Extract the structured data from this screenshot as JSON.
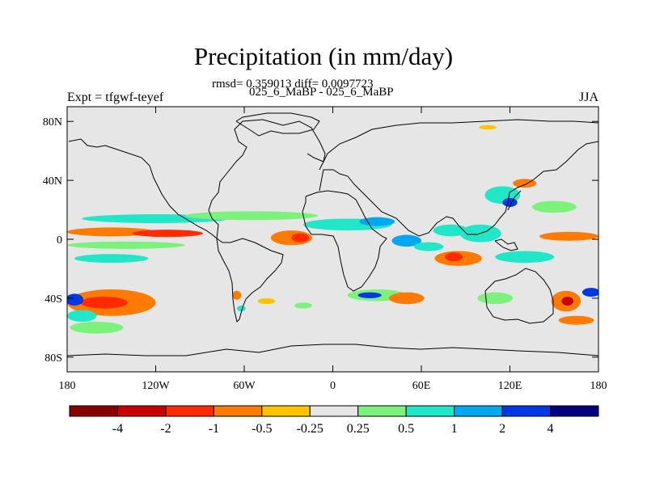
{
  "chart_data": {
    "type": "contour-map",
    "title": "Precipitation (in mm/day)",
    "stats_text": "rmsd= 0.359013 diff= 0.0097723",
    "rmsd": 0.359013,
    "diff": 0.0097723,
    "comparison_label": "025_6_MaBP - 025_6_MaBP",
    "left_label": "Expt = tfgwf-teyef",
    "right_label": "JJA",
    "lon_range": [
      -180,
      180
    ],
    "lat_range": [
      -90,
      90
    ],
    "x_ticks": [
      {
        "value": -180,
        "label": "180"
      },
      {
        "value": -120,
        "label": "120W"
      },
      {
        "value": -60,
        "label": "60W"
      },
      {
        "value": 0,
        "label": "0"
      },
      {
        "value": 60,
        "label": "60E"
      },
      {
        "value": 120,
        "label": "120E"
      },
      {
        "value": 180,
        "label": "180"
      }
    ],
    "y_ticks": [
      {
        "value": 80,
        "label": "80N"
      },
      {
        "value": 40,
        "label": "40N"
      },
      {
        "value": 0,
        "label": "0"
      },
      {
        "value": -40,
        "label": "40S"
      },
      {
        "value": -80,
        "label": "80S"
      }
    ],
    "colorbar": {
      "colors": [
        "#8a0000",
        "#c80000",
        "#ff2a00",
        "#ff7a00",
        "#ffc400",
        "#e6e6e6",
        "#7cf27c",
        "#22e6c8",
        "#00a8f0",
        "#0038e6",
        "#000080"
      ],
      "labels": [
        "-4",
        "-2",
        "-1",
        "-0.5",
        "-0.25",
        "0.25",
        "0.5",
        "1",
        "2",
        "4"
      ]
    },
    "anomaly_regions": [
      {
        "lon": -150,
        "lat": 5,
        "rlon": 30,
        "rlat": 3,
        "level": "-0.5"
      },
      {
        "lon": -112,
        "lat": 4,
        "rlon": 24,
        "rlat": 2.5,
        "level": "-1"
      },
      {
        "lon": -120,
        "lat": 14,
        "rlon": 50,
        "rlat": 3,
        "level": "0.5"
      },
      {
        "lon": -140,
        "lat": -4,
        "rlon": 40,
        "rlat": 2.5,
        "level": "0.25"
      },
      {
        "lon": -150,
        "lat": -13,
        "rlon": 25,
        "rlat": 3,
        "level": "0.5"
      },
      {
        "lon": -150,
        "lat": -43,
        "rlon": 30,
        "rlat": 9,
        "level": "-0.5"
      },
      {
        "lon": -155,
        "lat": -43,
        "rlon": 16,
        "rlat": 4,
        "level": "-1"
      },
      {
        "lon": -170,
        "lat": -52,
        "rlon": 10,
        "rlat": 4,
        "level": "0.5"
      },
      {
        "lon": -175,
        "lat": -41,
        "rlon": 6,
        "rlat": 4,
        "level": "2"
      },
      {
        "lon": -160,
        "lat": -60,
        "rlon": 18,
        "rlat": 4,
        "level": "0.25"
      },
      {
        "lon": -55,
        "lat": 16,
        "rlon": 45,
        "rlat": 3,
        "level": "0.25"
      },
      {
        "lon": -28,
        "lat": 1,
        "rlon": 14,
        "rlat": 5,
        "level": "-0.5"
      },
      {
        "lon": -22,
        "lat": 1,
        "rlon": 6,
        "rlat": 3,
        "level": "-1"
      },
      {
        "lon": 10,
        "lat": 10,
        "rlon": 30,
        "rlat": 4,
        "level": "0.5"
      },
      {
        "lon": 30,
        "lat": 12,
        "rlon": 12,
        "rlat": 3,
        "level": "1"
      },
      {
        "lon": 50,
        "lat": -1,
        "rlon": 10,
        "rlat": 4,
        "level": "1"
      },
      {
        "lon": 65,
        "lat": -5,
        "rlon": 10,
        "rlat": 3,
        "level": "0.5"
      },
      {
        "lon": 85,
        "lat": -13,
        "rlon": 16,
        "rlat": 5,
        "level": "-0.5"
      },
      {
        "lon": 82,
        "lat": -12,
        "rlon": 6,
        "rlat": 3,
        "level": "-1"
      },
      {
        "lon": 80,
        "lat": 6,
        "rlon": 12,
        "rlat": 4,
        "level": "0.5"
      },
      {
        "lon": 100,
        "lat": 4,
        "rlon": 14,
        "rlat": 6,
        "level": "0.5"
      },
      {
        "lon": 115,
        "lat": 30,
        "rlon": 12,
        "rlat": 6,
        "level": "0.5"
      },
      {
        "lon": 120,
        "lat": 25,
        "rlon": 5,
        "rlat": 3,
        "level": "2"
      },
      {
        "lon": 130,
        "lat": 38,
        "rlon": 8,
        "rlat": 3,
        "level": "-0.5"
      },
      {
        "lon": 150,
        "lat": 22,
        "rlon": 15,
        "rlat": 4,
        "level": "0.25"
      },
      {
        "lon": 160,
        "lat": 2,
        "rlon": 20,
        "rlat": 3,
        "level": "-0.5"
      },
      {
        "lon": 130,
        "lat": -12,
        "rlon": 20,
        "rlat": 4,
        "level": "0.5"
      },
      {
        "lon": 30,
        "lat": -38,
        "rlon": 20,
        "rlat": 4,
        "level": "0.25"
      },
      {
        "lon": 25,
        "lat": -38,
        "rlon": 8,
        "rlat": 2,
        "level": "2"
      },
      {
        "lon": 50,
        "lat": -40,
        "rlon": 12,
        "rlat": 4,
        "level": "-0.5"
      },
      {
        "lon": 110,
        "lat": -40,
        "rlon": 12,
        "rlat": 4,
        "level": "0.25"
      },
      {
        "lon": 158,
        "lat": -42,
        "rlon": 10,
        "rlat": 7,
        "level": "-0.5"
      },
      {
        "lon": 159,
        "lat": -42,
        "rlon": 4,
        "rlat": 3,
        "level": "-2"
      },
      {
        "lon": 175,
        "lat": -36,
        "rlon": 6,
        "rlat": 3,
        "level": "2"
      },
      {
        "lon": 165,
        "lat": -55,
        "rlon": 12,
        "rlat": 3,
        "level": "-0.5"
      },
      {
        "lon": -65,
        "lat": -38,
        "rlon": 3,
        "rlat": 3,
        "level": "-0.5"
      },
      {
        "lon": -62,
        "lat": -47,
        "rlon": 3,
        "rlat": 2,
        "level": "0.5"
      },
      {
        "lon": -20,
        "lat": -45,
        "rlon": 6,
        "rlat": 2,
        "level": "0.25"
      },
      {
        "lon": -45,
        "lat": -42,
        "rlon": 6,
        "rlat": 2,
        "level": "-0.25"
      },
      {
        "lon": 105,
        "lat": 76,
        "rlon": 6,
        "rlat": 1.5,
        "level": "-0.25"
      }
    ]
  }
}
